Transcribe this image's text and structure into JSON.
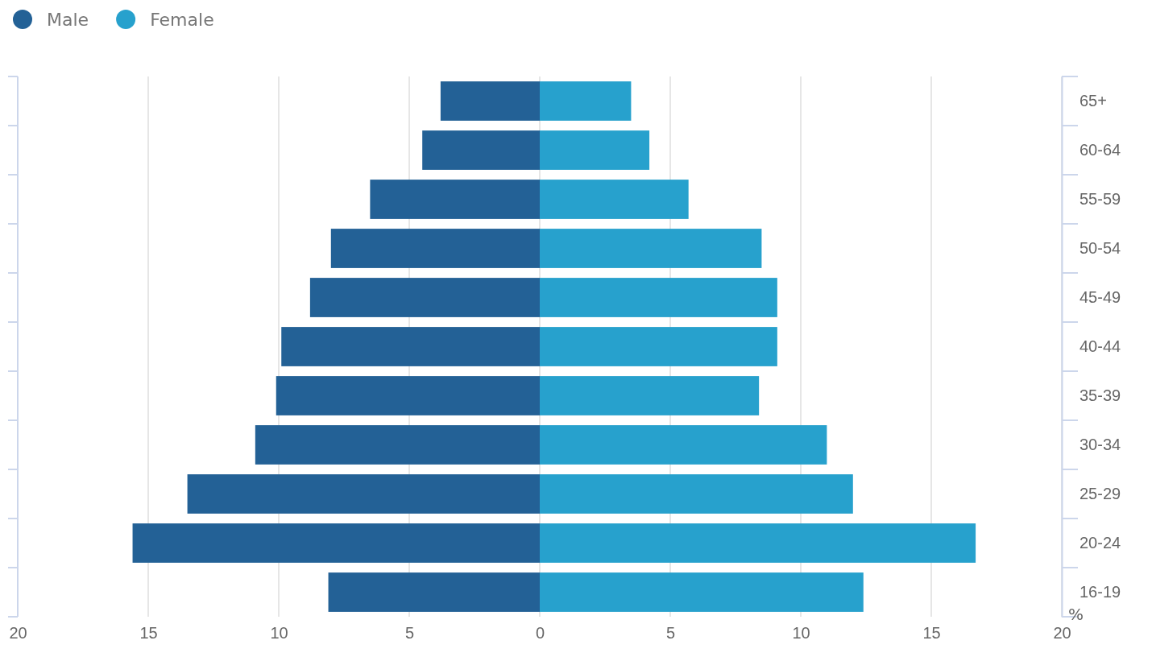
{
  "chart_data": {
    "type": "bar",
    "orientation": "horizontal",
    "stacked": true,
    "xlabel": "%",
    "categories": [
      "65+",
      "60-64",
      "55-59",
      "50-54",
      "45-49",
      "40-44",
      "35-39",
      "30-34",
      "25-29",
      "20-24",
      "16-19"
    ],
    "series": [
      {
        "name": "Male",
        "color": "#236196",
        "values": [
          -3.8,
          -4.5,
          -6.5,
          -8.0,
          -8.8,
          -9.9,
          -10.1,
          -10.9,
          -13.5,
          -15.6,
          -8.1
        ]
      },
      {
        "name": "Female",
        "color": "#27a1cd",
        "values": [
          3.5,
          4.2,
          5.7,
          8.5,
          9.1,
          9.1,
          8.4,
          11.0,
          12.0,
          16.7,
          12.4
        ]
      }
    ],
    "xlim": [
      -20,
      20
    ],
    "xticks": [
      {
        "value": -20,
        "label": "20"
      },
      {
        "value": -15,
        "label": "15"
      },
      {
        "value": -10,
        "label": "10"
      },
      {
        "value": -5,
        "label": "5"
      },
      0,
      5,
      10,
      15,
      20
    ],
    "grid": "x",
    "legend": "top left"
  }
}
